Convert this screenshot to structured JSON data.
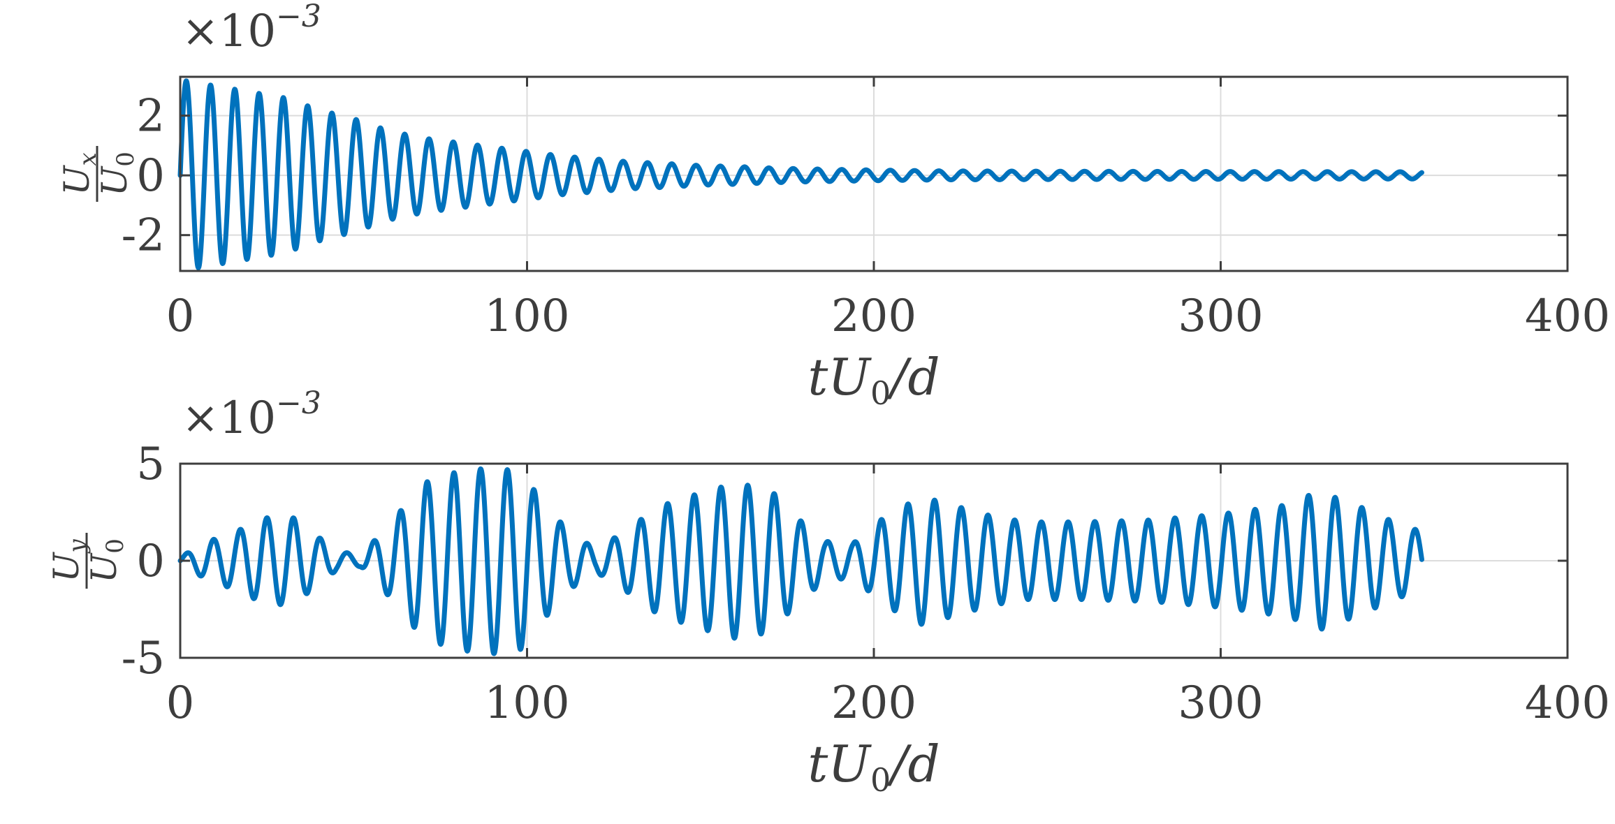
{
  "chart_data": [
    {
      "type": "line",
      "xlabel": {
        "t": "t",
        "u": "U",
        "sub": "0",
        "d": "/d"
      },
      "ylabel": {
        "num": "U",
        "num_sub": "x",
        "den": "U",
        "den_sub": "0"
      },
      "exponent": {
        "base": "×10",
        "power": "−3"
      },
      "xlim": [
        0,
        400
      ],
      "ylim": [
        -3.2,
        3.3
      ],
      "xticks": [
        0,
        100,
        200,
        300,
        400
      ],
      "xtick_labels": [
        "0",
        "100",
        "200",
        "300",
        "400"
      ],
      "yticks": [
        -2,
        0,
        2
      ],
      "ytick_labels": [
        "-2",
        "0",
        "2"
      ],
      "grid": true,
      "color": "#0072bd",
      "series": [
        {
          "period": 7.0,
          "t_end": 358,
          "envelope": [
            [
              0,
              3.2
            ],
            [
              10,
              3.0
            ],
            [
              20,
              2.8
            ],
            [
              30,
              2.6
            ],
            [
              40,
              2.2
            ],
            [
              50,
              1.9
            ],
            [
              60,
              1.5
            ],
            [
              70,
              1.25
            ],
            [
              80,
              1.1
            ],
            [
              90,
              0.95
            ],
            [
              100,
              0.8
            ],
            [
              110,
              0.65
            ],
            [
              120,
              0.55
            ],
            [
              130,
              0.45
            ],
            [
              140,
              0.4
            ],
            [
              150,
              0.33
            ],
            [
              160,
              0.3
            ],
            [
              170,
              0.25
            ],
            [
              180,
              0.22
            ],
            [
              190,
              0.2
            ],
            [
              200,
              0.18
            ],
            [
              220,
              0.15
            ],
            [
              250,
              0.14
            ],
            [
              300,
              0.13
            ],
            [
              358,
              0.12
            ]
          ]
        }
      ]
    },
    {
      "type": "line",
      "xlabel": {
        "t": "t",
        "u": "U",
        "sub": "0",
        "d": "/d"
      },
      "ylabel": {
        "num": "U",
        "num_sub": "y",
        "den": "U",
        "den_sub": "0"
      },
      "exponent": {
        "base": "×10",
        "power": "−3"
      },
      "xlim": [
        0,
        400
      ],
      "ylim": [
        -5,
        5
      ],
      "xticks": [
        0,
        100,
        200,
        300,
        400
      ],
      "xtick_labels": [
        "0",
        "100",
        "200",
        "300",
        "400"
      ],
      "yticks": [
        -5,
        0,
        5
      ],
      "ytick_labels": [
        "-5",
        "0",
        "5"
      ],
      "grid": true,
      "color": "#0072bd",
      "series": [
        {
          "period": 7.7,
          "t_end": 358,
          "envelope": [
            [
              0,
              0.2
            ],
            [
              8,
              1.0
            ],
            [
              16,
              1.5
            ],
            [
              24,
              2.2
            ],
            [
              32,
              2.3
            ],
            [
              38,
              1.5
            ],
            [
              45,
              0.5
            ],
            [
              52,
              0.3
            ],
            [
              60,
              1.8
            ],
            [
              70,
              4.0
            ],
            [
              80,
              4.6
            ],
            [
              90,
              4.8
            ],
            [
              98,
              4.6
            ],
            [
              104,
              3.2
            ],
            [
              112,
              1.5
            ],
            [
              120,
              0.6
            ],
            [
              128,
              1.5
            ],
            [
              138,
              2.8
            ],
            [
              150,
              3.5
            ],
            [
              160,
              4.0
            ],
            [
              170,
              3.7
            ],
            [
              178,
              2.2
            ],
            [
              186,
              1.0
            ],
            [
              194,
              0.9
            ],
            [
              204,
              2.4
            ],
            [
              214,
              3.3
            ],
            [
              224,
              2.8
            ],
            [
              234,
              2.3
            ],
            [
              244,
              2.0
            ],
            [
              260,
              2.0
            ],
            [
              280,
              2.1
            ],
            [
              300,
              2.4
            ],
            [
              320,
              2.9
            ],
            [
              328,
              3.6
            ],
            [
              340,
              2.8
            ],
            [
              350,
              2.0
            ],
            [
              358,
              1.5
            ]
          ]
        }
      ]
    }
  ]
}
